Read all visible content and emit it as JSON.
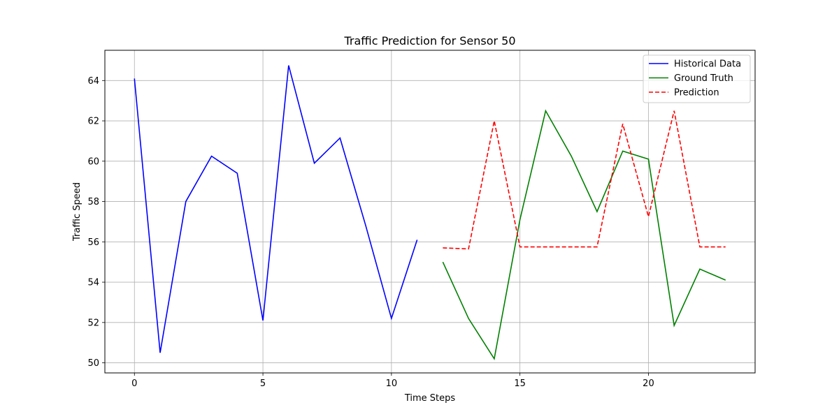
{
  "chart_data": {
    "type": "line",
    "title": "Traffic Prediction for Sensor 50",
    "xlabel": "Time Steps",
    "ylabel": "Traffic Speed",
    "xlim": [
      -1.15,
      24.15
    ],
    "ylim": [
      49.5,
      65.5
    ],
    "xticks": [
      0,
      5,
      10,
      15,
      20
    ],
    "yticks": [
      50,
      52,
      54,
      56,
      58,
      60,
      62,
      64
    ],
    "grid": true,
    "legend_position": "top-right",
    "series": [
      {
        "name": "Historical Data",
        "color": "#0000ff",
        "dash": "solid",
        "x": [
          0,
          1,
          2,
          3,
          4,
          5,
          6,
          7,
          8,
          9,
          10,
          11
        ],
        "y": [
          64.1,
          50.5,
          58.0,
          60.25,
          59.4,
          52.1,
          64.75,
          59.9,
          61.15,
          56.8,
          52.2,
          56.1
        ]
      },
      {
        "name": "Ground Truth",
        "color": "#008000",
        "dash": "solid",
        "x": [
          12,
          13,
          14,
          15,
          16,
          17,
          18,
          19,
          20,
          21,
          22,
          23
        ],
        "y": [
          55.0,
          52.2,
          50.2,
          57.1,
          62.5,
          60.25,
          57.5,
          60.5,
          60.1,
          51.85,
          54.65,
          54.1
        ]
      },
      {
        "name": "Prediction",
        "color": "#ff0000",
        "dash": "dashed",
        "x": [
          12,
          13,
          14,
          15,
          16,
          17,
          18,
          19,
          20,
          21,
          22,
          23
        ],
        "y": [
          55.7,
          55.65,
          62.0,
          55.75,
          55.75,
          55.75,
          55.75,
          61.85,
          57.25,
          62.5,
          55.75,
          55.75
        ]
      }
    ]
  }
}
